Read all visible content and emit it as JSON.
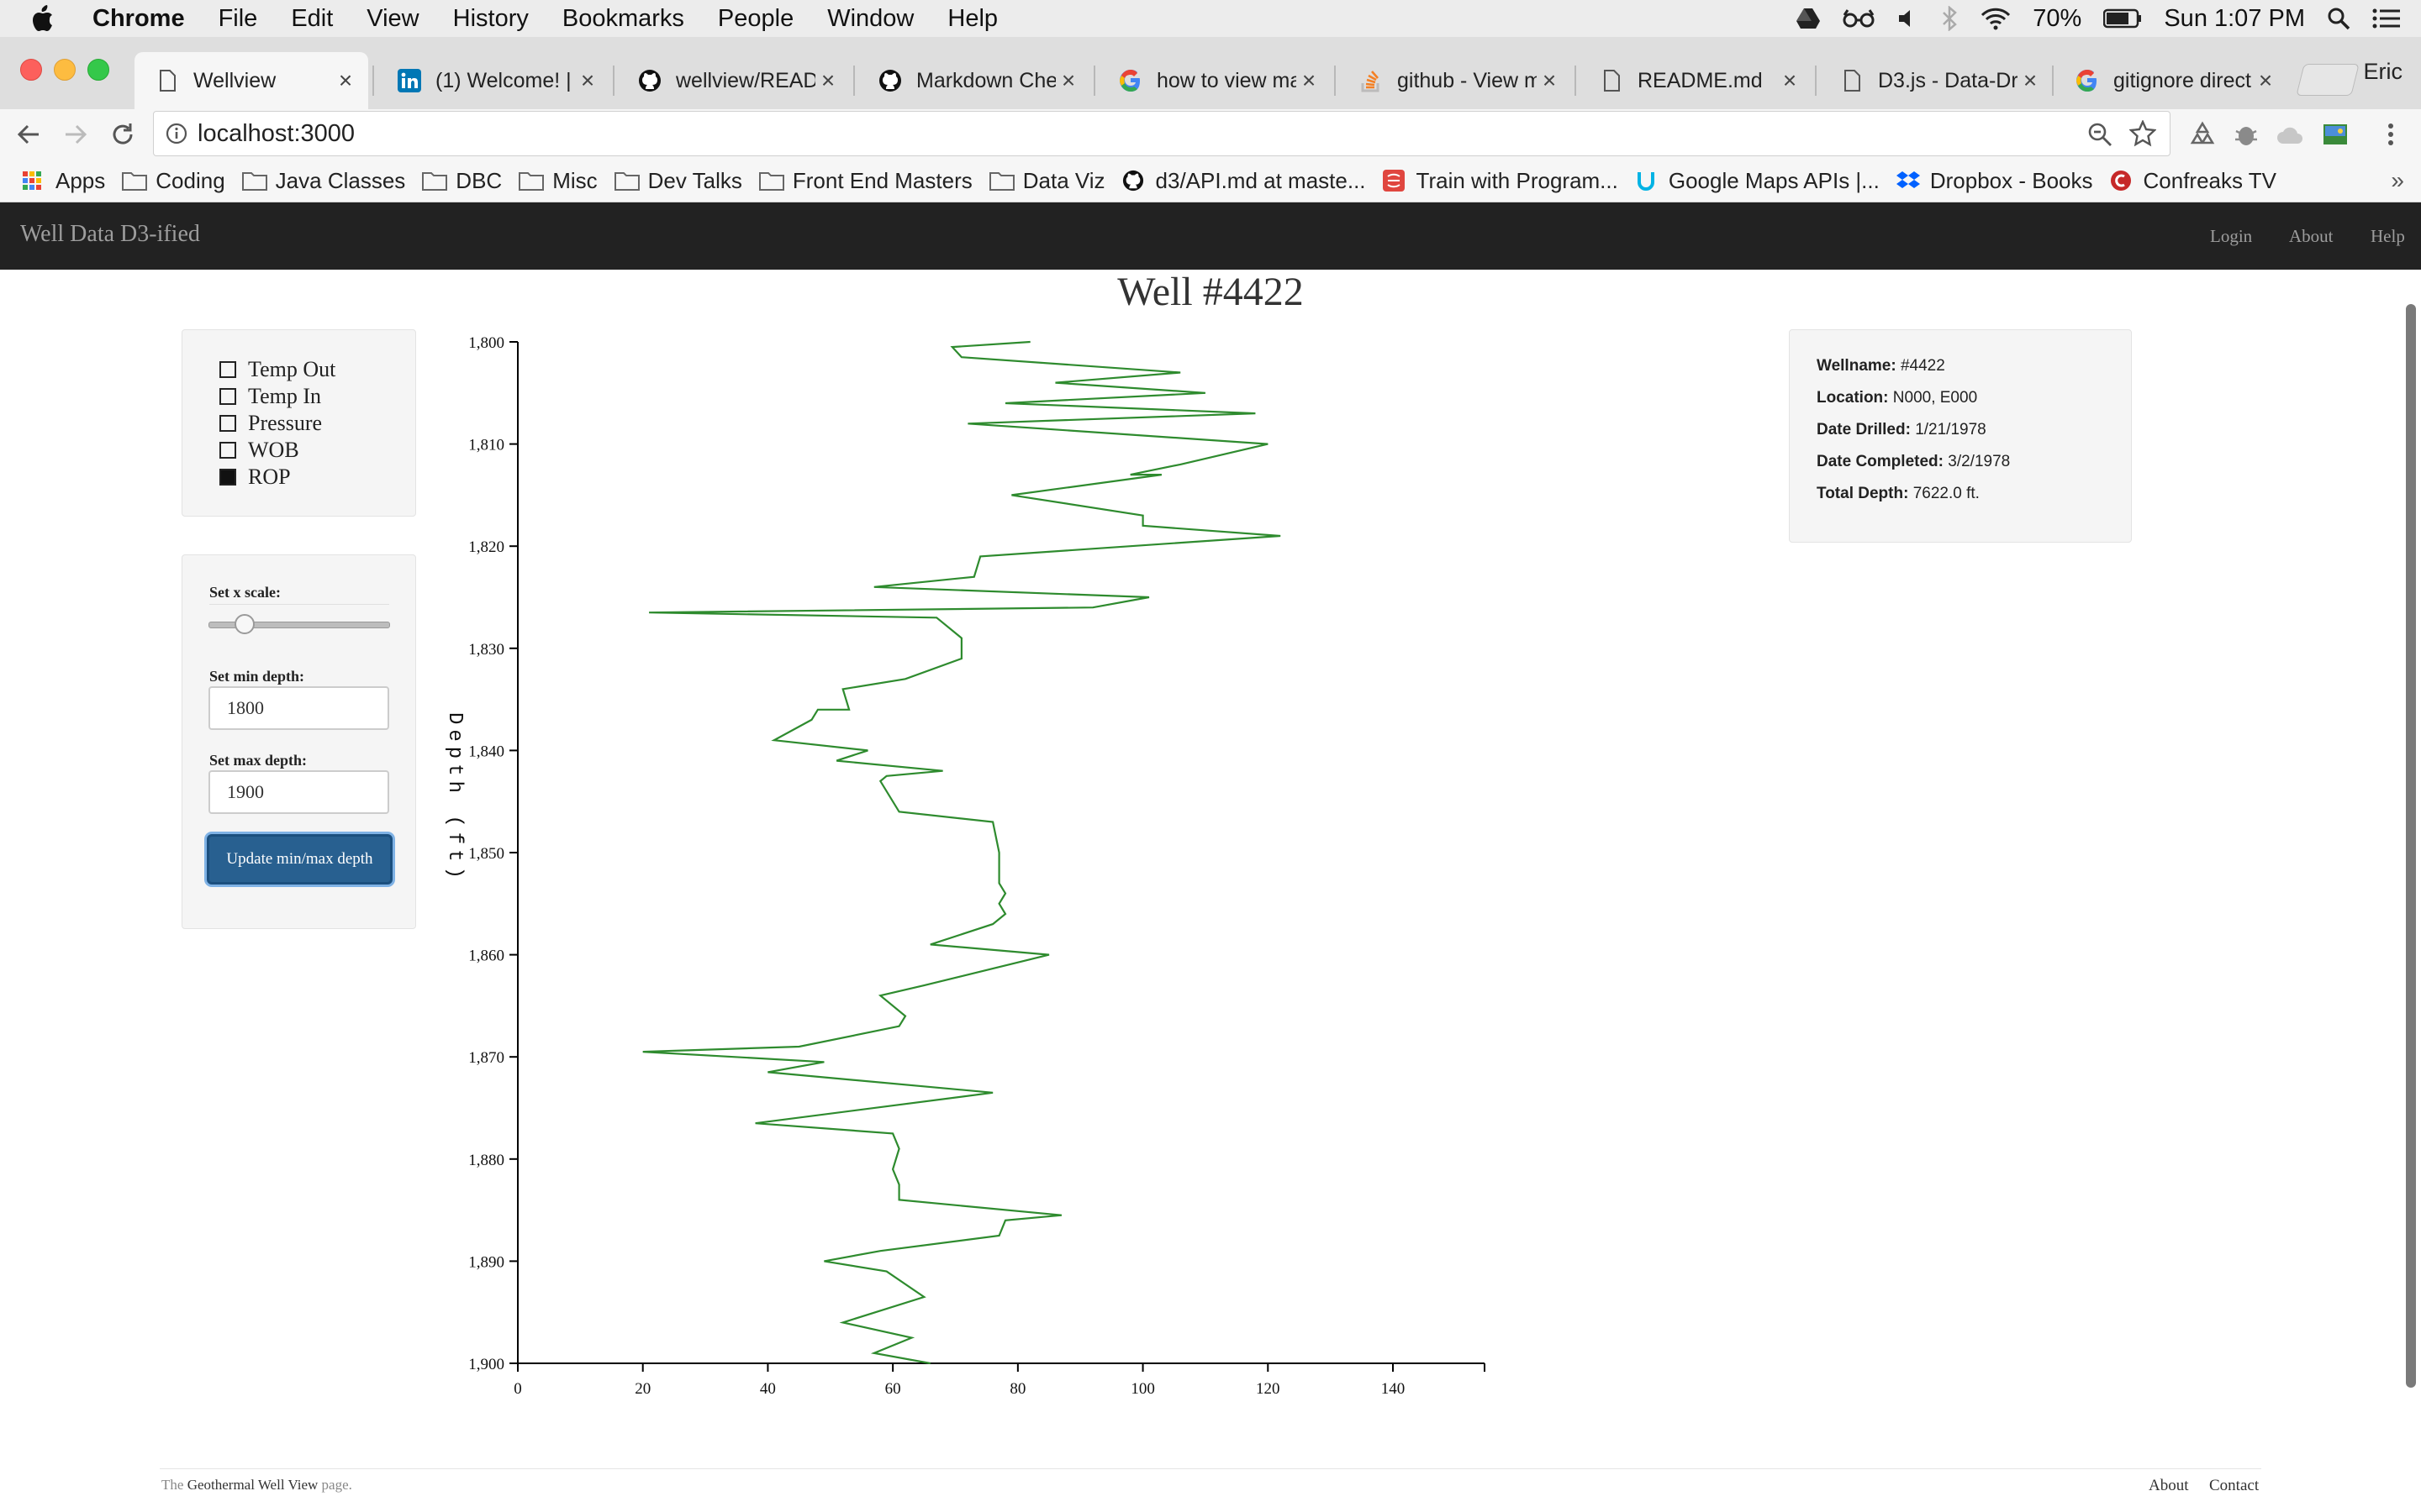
{
  "os_menubar": {
    "app_name": "Chrome",
    "menus": [
      "File",
      "Edit",
      "View",
      "History",
      "Bookmarks",
      "People",
      "Window",
      "Help"
    ],
    "battery": "70%",
    "clock": "Sun 1:07 PM"
  },
  "browser": {
    "tabs": [
      {
        "title": "Wellview",
        "icon": "page-icon"
      },
      {
        "title": "(1) Welcome! |",
        "icon": "linkedin-icon"
      },
      {
        "title": "wellview/READM",
        "icon": "github-icon"
      },
      {
        "title": "Markdown Chea",
        "icon": "github-icon"
      },
      {
        "title": "how to view ma",
        "icon": "google-icon"
      },
      {
        "title": "github - View m",
        "icon": "stackoverflow-icon"
      },
      {
        "title": "README.md",
        "icon": "page-icon"
      },
      {
        "title": "D3.js - Data-Dr",
        "icon": "page-icon"
      },
      {
        "title": "gitignore direct",
        "icon": "google-icon"
      }
    ],
    "profile_name": "Eric",
    "url": "localhost:3000",
    "bookmarks": [
      {
        "label": "Apps",
        "icon": "apps-grid-icon"
      },
      {
        "label": "Coding",
        "icon": "folder-icon"
      },
      {
        "label": "Java Classes",
        "icon": "folder-icon"
      },
      {
        "label": "DBC",
        "icon": "folder-icon"
      },
      {
        "label": "Misc",
        "icon": "folder-icon"
      },
      {
        "label": "Dev Talks",
        "icon": "folder-icon"
      },
      {
        "label": "Front End Masters",
        "icon": "folder-icon"
      },
      {
        "label": "Data Viz",
        "icon": "folder-icon"
      },
      {
        "label": "d3/API.md at maste...",
        "icon": "github-icon"
      },
      {
        "label": "Train with Program...",
        "icon": "codeschool-icon"
      },
      {
        "label": "Google Maps APIs |...",
        "icon": "udacity-icon"
      },
      {
        "label": "Dropbox - Books",
        "icon": "dropbox-icon"
      },
      {
        "label": "Confreaks TV",
        "icon": "confreaks-icon"
      }
    ],
    "more_bookmarks": "»"
  },
  "navbar": {
    "brand": "Well Data D3-ified",
    "links": [
      "Login",
      "About",
      "Help"
    ]
  },
  "page": {
    "title": "Well #4422"
  },
  "series_toggles": [
    {
      "label": "Temp Out",
      "checked": false
    },
    {
      "label": "Temp In",
      "checked": false
    },
    {
      "label": "Pressure",
      "checked": false
    },
    {
      "label": "WOB",
      "checked": false
    },
    {
      "label": "ROP",
      "checked": true
    }
  ],
  "controls": {
    "x_scale_label": "Set x scale:",
    "x_scale_value": 0.2,
    "min_depth_label": "Set min depth:",
    "min_depth_value": "1800",
    "max_depth_label": "Set max depth:",
    "max_depth_value": "1900",
    "update_button": "Update min/max depth"
  },
  "well_info": {
    "wellname_label": "Wellname:",
    "wellname": "#4422",
    "location_label": "Location:",
    "location": "N000, E000",
    "date_drilled_label": "Date Drilled:",
    "date_drilled": "1/21/1978",
    "date_completed_label": "Date Completed:",
    "date_completed": "3/2/1978",
    "total_depth_label": "Total Depth:",
    "total_depth": "7622.0 ft."
  },
  "chart_data": {
    "type": "line",
    "ylabel": "Depth (ft)",
    "xlim": [
      0,
      155
    ],
    "ylim": [
      1800,
      1900
    ],
    "y_inverted": true,
    "x_ticks": [
      "0",
      "20",
      "40",
      "60",
      "80",
      "100",
      "120",
      "140"
    ],
    "y_ticks": [
      "1,800",
      "1,810",
      "1,820",
      "1,830",
      "1,840",
      "1,850",
      "1,860",
      "1,870",
      "1,880",
      "1,890",
      "1,900"
    ],
    "series": [
      {
        "color": "#2e8b2e",
        "x": [
          82,
          69.5,
          71,
          106,
          86,
          110,
          78,
          118,
          72,
          120,
          106,
          98,
          103,
          79,
          100,
          100,
          122,
          74,
          73,
          57,
          101,
          92,
          21,
          67,
          71,
          71,
          62,
          52,
          53,
          48,
          47,
          41,
          56,
          51,
          68,
          59,
          58,
          61,
          76,
          77,
          77,
          78,
          77,
          78,
          76,
          66,
          85,
          65,
          58,
          62,
          61,
          45,
          20,
          49,
          40,
          76,
          38,
          60,
          61,
          60,
          61,
          61,
          87,
          78,
          77,
          58,
          49,
          59,
          65,
          52,
          63,
          57,
          66
        ],
        "y": [
          1800,
          1800.5,
          1801.5,
          1803,
          1804,
          1805,
          1806,
          1807,
          1808,
          1810,
          1812,
          1813,
          1813,
          1815,
          1817,
          1818,
          1819,
          1821,
          1823,
          1824,
          1825,
          1826,
          1826.5,
          1827,
          1829,
          1831,
          1833,
          1834,
          1836,
          1836,
          1837,
          1839,
          1840,
          1841,
          1842,
          1842.5,
          1843,
          1846,
          1847,
          1850,
          1853,
          1854,
          1855,
          1856,
          1857,
          1859,
          1860,
          1863,
          1864,
          1866,
          1867,
          1869,
          1869.5,
          1870.5,
          1871.5,
          1873.5,
          1876.5,
          1877.5,
          1879,
          1881,
          1882.5,
          1884,
          1885.5,
          1886,
          1887.5,
          1889,
          1890,
          1891,
          1893.5,
          1896,
          1897.5,
          1899,
          1900
        ]
      }
    ]
  },
  "footer": {
    "prefix": "The",
    "site": "Geothermal Well View",
    "suffix": "page.",
    "links": [
      "About",
      "Contact"
    ]
  }
}
